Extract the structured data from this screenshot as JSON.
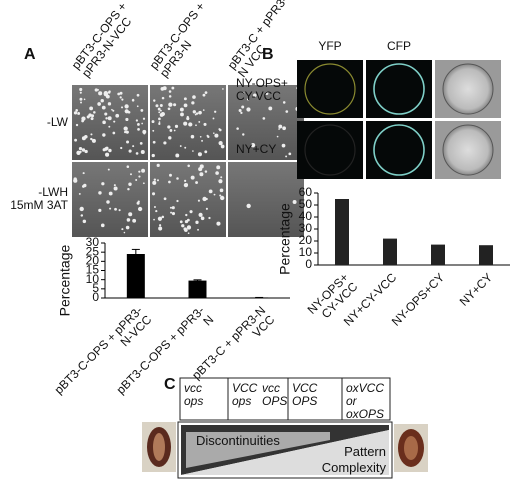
{
  "panel_labels": [
    "A",
    "B",
    "C"
  ],
  "panel_a": {
    "columns": [
      "pBT3-C-OPS + pPR3-N-VCC",
      "pBT3-C-OPS + pPR3-N",
      "pBT3-C + pPR3-N VCC"
    ],
    "rows": [
      "-LW",
      "-LWH 15mM 3AT"
    ]
  },
  "panel_b": {
    "columns": [
      "YFP",
      "CFP"
    ],
    "rows": [
      "NY-OPS+ CY-VCC",
      "NY+CY"
    ]
  },
  "panel_c": {
    "genotypes": [
      [
        "vcc ops"
      ],
      [
        "VCC ops",
        "vcc OPS"
      ],
      [
        "VCC OPS"
      ],
      [
        "oxVCC or oxOPS"
      ]
    ],
    "upper": "Discontinuities",
    "lower": "Pattern Complexity"
  },
  "chart_data": [
    {
      "type": "bar",
      "y_label": "Percentage",
      "categories": [
        "pBT3-C-OPS + pPR3-N-VCC",
        "pBT3-C-OPS + pPR3-N",
        "pBT3-C + pPR3-N VCC"
      ],
      "values": [
        24,
        9.5,
        0.3
      ],
      "errors": [
        2.5,
        0.4,
        0
      ],
      "color": "#000000",
      "ylim": [
        0,
        30
      ],
      "yticks": [
        0,
        5,
        10,
        15,
        20,
        25,
        30
      ]
    },
    {
      "type": "bar",
      "y_label": "Percentage",
      "categories": [
        "NY-OPS+ CY-VCC",
        "NY+CY-VCC",
        "NY-OPS+CY",
        "NY+CY"
      ],
      "values": [
        55,
        22,
        17,
        16.5
      ],
      "color": "#222222",
      "ylim": [
        0,
        60
      ],
      "yticks": [
        0,
        10,
        20,
        30,
        40,
        50,
        60
      ]
    }
  ]
}
